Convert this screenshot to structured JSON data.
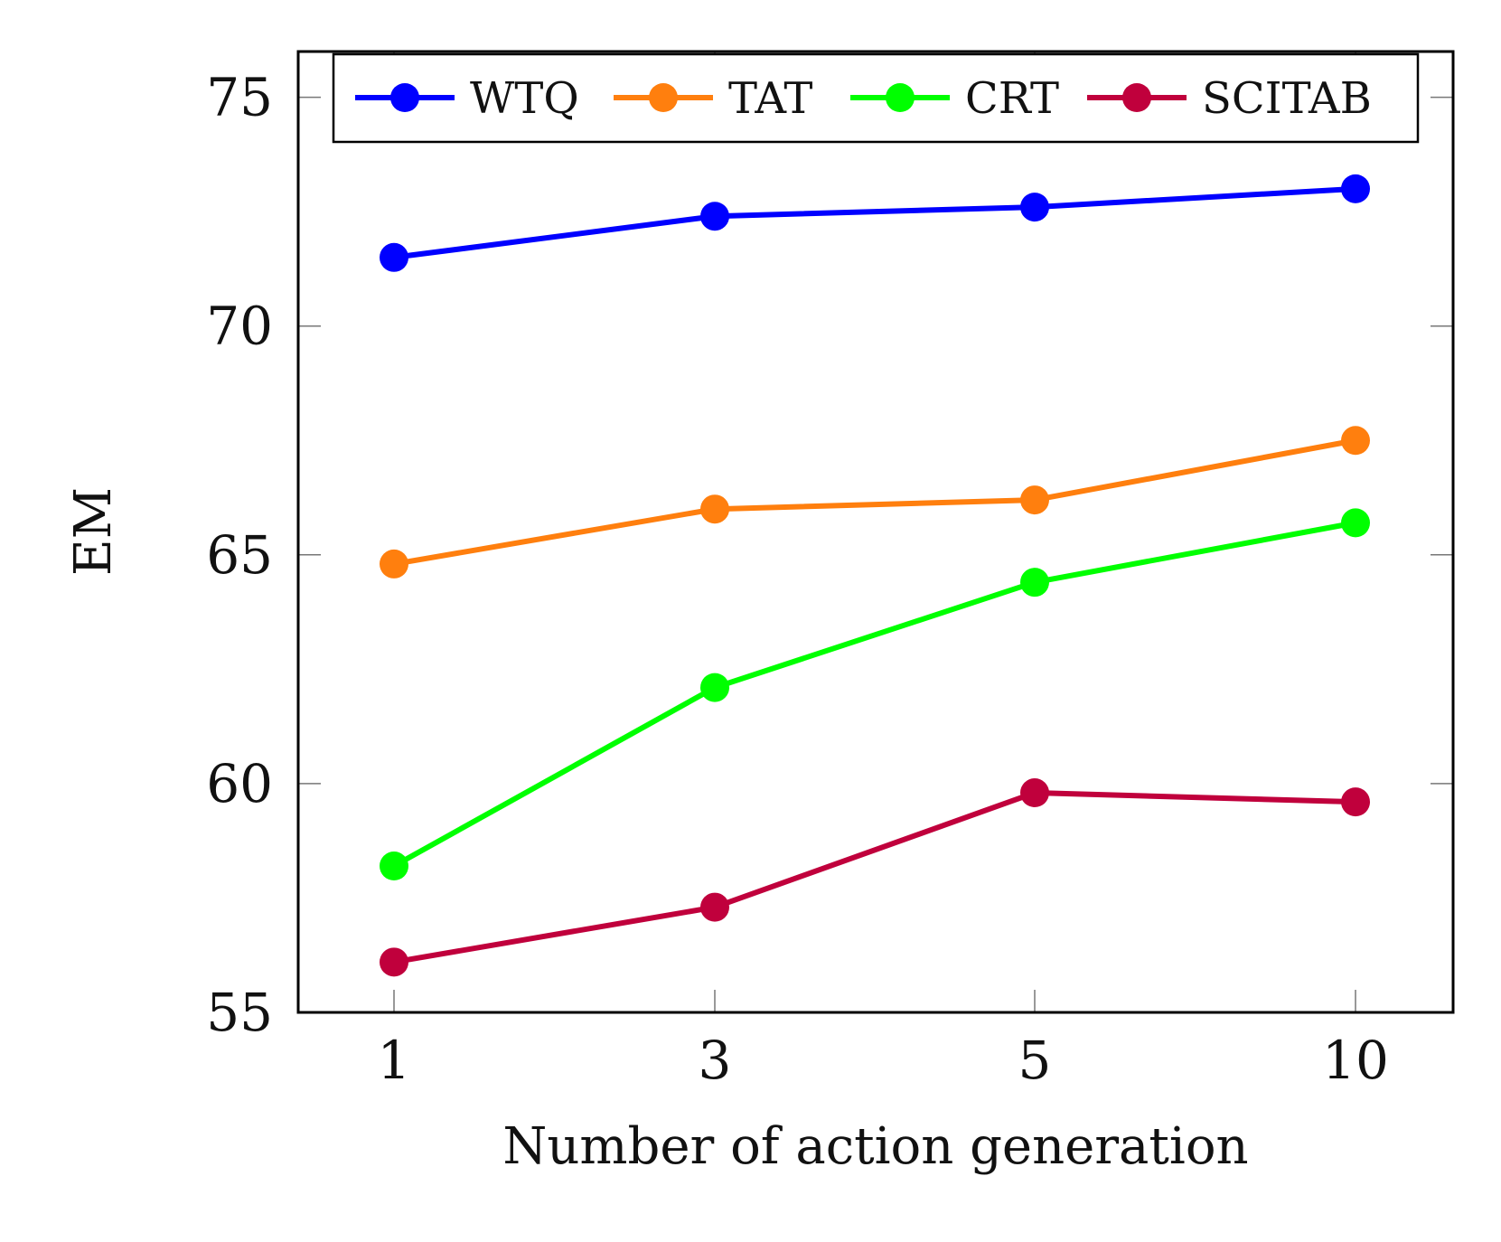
{
  "chart_data": {
    "type": "line",
    "title": "",
    "xlabel": "Number of action generation",
    "ylabel": "EM",
    "categories": [
      "1",
      "3",
      "5",
      "10"
    ],
    "ylim": [
      55,
      76
    ],
    "yticks": [
      55,
      60,
      65,
      70,
      75
    ],
    "grid": false,
    "legend_position": "top",
    "series": [
      {
        "name": "WTQ",
        "color": "#0000ff",
        "marker": "circle",
        "values": [
          71.5,
          72.4,
          72.6,
          73.0
        ]
      },
      {
        "name": "TAT",
        "color": "#ff7f0e",
        "marker": "circle",
        "values": [
          64.8,
          66.0,
          66.2,
          67.5
        ]
      },
      {
        "name": "CRT",
        "color": "#00ff00",
        "marker": "circle",
        "values": [
          58.2,
          62.1,
          64.4,
          65.7
        ]
      },
      {
        "name": "SCITAB",
        "color": "#c0003c",
        "marker": "circle",
        "values": [
          56.1,
          57.3,
          59.8,
          59.6
        ]
      }
    ]
  }
}
